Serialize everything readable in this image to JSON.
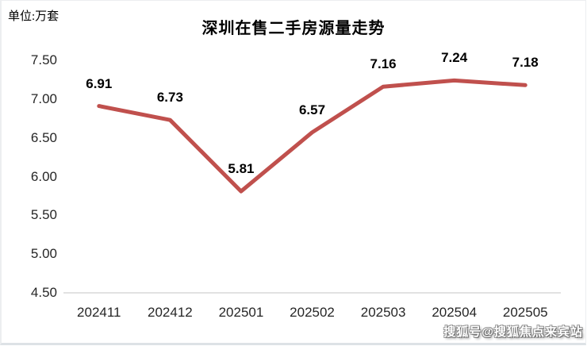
{
  "page": {
    "unit_label": "单位:万套",
    "watermark": "搜狐号@搜狐焦点来宾站"
  },
  "chart_data": {
    "type": "line",
    "title": "深圳在售二手房源量走势",
    "ylabel": "单位:万套",
    "categories": [
      "202411",
      "202412",
      "202501",
      "202502",
      "202503",
      "202504",
      "202505"
    ],
    "values": [
      6.91,
      6.73,
      5.81,
      6.57,
      7.16,
      7.24,
      7.18
    ],
    "yticks": [
      "7.50",
      "7.00",
      "6.50",
      "6.00",
      "5.50",
      "5.00",
      "4.50"
    ],
    "ylim": [
      4.5,
      7.5
    ],
    "grid": false,
    "legend": "none",
    "data_label_position": "above",
    "line_color": "#C0504D",
    "axis_line_color": "#D9D9D9"
  }
}
